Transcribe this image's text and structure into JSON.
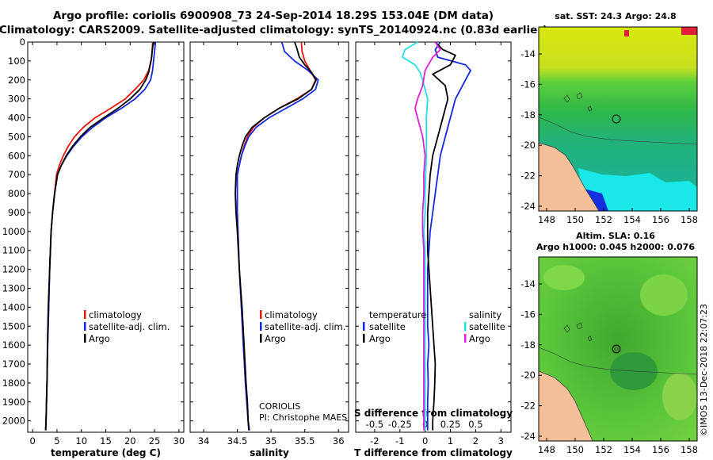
{
  "title_line1": "Argo profile: coriolis 6900908_73 24-Sep-2014 18.29S 153.04E (DM data)",
  "title_line2": "Climatology: CARS2009. Satellite-adjusted climatology: synTS_20140924.nc (0.83d earlier)",
  "colors": {
    "climatology": "#e8180a",
    "satellite": "#1428e0",
    "argo": "#000000",
    "s_satellite": "#20e0e8",
    "s_argo": "#e020d8"
  },
  "chart_data": [
    {
      "type": "line",
      "id": "temperature",
      "xlabel": "temperature (deg C)",
      "xlim": [
        -1,
        31
      ],
      "xticks": [
        0,
        5,
        10,
        15,
        20,
        25,
        30
      ],
      "ylim": [
        2060,
        0
      ],
      "yticks": [
        0,
        100,
        200,
        300,
        400,
        500,
        600,
        700,
        800,
        900,
        1000,
        1100,
        1200,
        1300,
        1400,
        1500,
        1600,
        1700,
        1800,
        1900,
        2000
      ],
      "ytick_labels": [
        "0",
        "100",
        "200",
        "300",
        "400",
        "500",
        "600",
        "700",
        "800",
        "900",
        "1000",
        "1100",
        "1200",
        "1300",
        "1400",
        "1500",
        "1600",
        "1700",
        "1800",
        "1900",
        "2000"
      ],
      "legend": [
        "climatology",
        "satellite-adj. clim.",
        "Argo"
      ],
      "series": [
        {
          "name": "climatology",
          "color_key": "climatology",
          "x": [
            24.6,
            24.5,
            24.3,
            23.8,
            22.8,
            21.0,
            19.0,
            16.0,
            12.8,
            10.4,
            8.6,
            7.3,
            6.3,
            5.5,
            4.9,
            4.5,
            4.1,
            3.8,
            3.5,
            3.3,
            3.1,
            2.95,
            2.85,
            2.75,
            2.65
          ],
          "y": [
            0,
            50,
            100,
            150,
            200,
            250,
            300,
            350,
            400,
            450,
            500,
            550,
            600,
            650,
            700,
            800,
            900,
            1000,
            1200,
            1400,
            1600,
            1800,
            1900,
            2000,
            2050
          ]
        },
        {
          "name": "satellite-adj. clim.",
          "color_key": "satellite",
          "x": [
            25.2,
            25.0,
            24.8,
            24.6,
            24.2,
            23.0,
            21.0,
            18.2,
            15.0,
            12.3,
            10.1,
            8.4,
            7.0,
            5.9,
            5.1,
            4.5,
            4.1,
            3.8,
            3.5,
            3.3,
            3.1,
            2.95,
            2.85,
            2.75,
            2.65
          ],
          "y": [
            0,
            50,
            100,
            150,
            200,
            250,
            300,
            350,
            400,
            450,
            500,
            550,
            600,
            650,
            700,
            800,
            900,
            1000,
            1200,
            1400,
            1600,
            1800,
            1900,
            2000,
            2050
          ]
        },
        {
          "name": "Argo",
          "color_key": "argo",
          "x": [
            24.8,
            24.6,
            24.4,
            24.1,
            23.8,
            23.2,
            22.0,
            20.0,
            17.5,
            14.6,
            11.8,
            9.8,
            8.2,
            6.9,
            5.9,
            5.1,
            4.5,
            4.1,
            3.8,
            3.5,
            3.2,
            3.05,
            2.95,
            2.85,
            2.75,
            2.7
          ],
          "y": [
            0,
            30,
            80,
            120,
            160,
            200,
            250,
            300,
            350,
            400,
            450,
            500,
            550,
            600,
            650,
            700,
            800,
            900,
            1000,
            1200,
            1400,
            1600,
            1800,
            1900,
            2000,
            2050
          ]
        }
      ]
    },
    {
      "type": "line",
      "id": "salinity",
      "xlabel": "salinity",
      "xlim": [
        33.8,
        36.15
      ],
      "xticks": [
        34,
        34.5,
        35,
        35.5,
        36
      ],
      "xtick_labels": [
        "34",
        "34.5",
        "35",
        "35.5",
        "36"
      ],
      "ylim": [
        2060,
        0
      ],
      "legend": [
        "climatology",
        "satellite-adj. clim.",
        "Argo"
      ],
      "note_line1": "CORIOLIS",
      "note_line2": "PI: Christophe MAES",
      "series": [
        {
          "name": "climatology",
          "color_key": "climatology",
          "x": [
            35.45,
            35.46,
            35.5,
            35.58,
            35.66,
            35.6,
            35.38,
            35.12,
            34.9,
            34.74,
            34.65,
            34.6,
            34.56,
            34.53,
            34.5,
            34.5,
            34.5,
            34.51,
            34.53,
            34.56,
            34.59,
            34.62,
            34.64,
            34.66,
            34.68
          ],
          "y": [
            0,
            50,
            100,
            150,
            200,
            250,
            300,
            350,
            400,
            450,
            500,
            550,
            600,
            650,
            700,
            800,
            900,
            1000,
            1200,
            1400,
            1600,
            1800,
            1900,
            2000,
            2050
          ]
        },
        {
          "name": "satellite-adj. clim.",
          "color_key": "satellite",
          "x": [
            35.16,
            35.2,
            35.35,
            35.55,
            35.7,
            35.66,
            35.47,
            35.22,
            34.97,
            34.78,
            34.67,
            34.61,
            34.56,
            34.53,
            34.5,
            34.5,
            34.5,
            34.51,
            34.53,
            34.56,
            34.59,
            34.62,
            34.64,
            34.66,
            34.68
          ],
          "y": [
            0,
            50,
            100,
            150,
            200,
            250,
            300,
            350,
            400,
            450,
            500,
            550,
            600,
            650,
            700,
            800,
            900,
            1000,
            1200,
            1400,
            1600,
            1800,
            1900,
            2000,
            2050
          ]
        },
        {
          "name": "Argo",
          "color_key": "argo",
          "x": [
            35.35,
            35.38,
            35.42,
            35.5,
            35.6,
            35.67,
            35.6,
            35.4,
            35.12,
            34.9,
            34.72,
            34.62,
            34.57,
            34.53,
            34.5,
            34.48,
            34.47,
            34.48,
            34.5,
            34.53,
            34.57,
            34.6,
            34.63,
            34.65,
            34.66,
            34.67
          ],
          "y": [
            0,
            30,
            80,
            120,
            160,
            200,
            250,
            300,
            350,
            400,
            450,
            500,
            550,
            600,
            650,
            700,
            800,
            900,
            1000,
            1200,
            1400,
            1600,
            1800,
            1900,
            2000,
            2050
          ]
        }
      ]
    },
    {
      "type": "line",
      "id": "difference",
      "xlabel": "T difference from climatology",
      "xlim": [
        -2.75,
        3.4
      ],
      "xticks": [
        -2,
        -1,
        0,
        1,
        2,
        3
      ],
      "xtick_labels": [
        "-2",
        "-1",
        "0",
        "1",
        "2",
        "3"
      ],
      "s_xlabel": "S difference from climatology",
      "s_xticks": [
        -2,
        -1,
        0,
        1,
        2
      ],
      "s_xtick_labels": [
        "-0.5",
        "-0.25",
        "0",
        "0.25",
        "0.5"
      ],
      "ylim": [
        2060,
        0
      ],
      "legend_temperature_title": "temperature",
      "legend_salinity_title": "salinity",
      "legend_temperature": [
        "satellite",
        "Argo"
      ],
      "legend_salinity": [
        "satellite",
        "Argo"
      ],
      "series": [
        {
          "name": "T satellite",
          "color_key": "satellite",
          "x": [
            0.6,
            0.4,
            0.5,
            1.6,
            1.8,
            1.6,
            1.2,
            1.0,
            0.8,
            0.6,
            0.5,
            0.4,
            0.3,
            0.2,
            0.15,
            0.1,
            0.1,
            0.1,
            0.1,
            0.15,
            0.1,
            0.12,
            0.1,
            0.1,
            0.1
          ],
          "y": [
            0,
            40,
            80,
            120,
            150,
            200,
            300,
            400,
            500,
            600,
            700,
            800,
            900,
            1000,
            1100,
            1200,
            1300,
            1400,
            1500,
            1600,
            1700,
            1800,
            1900,
            2000,
            2050
          ]
        },
        {
          "name": "T Argo",
          "color_key": "argo",
          "x": [
            0.4,
            0.7,
            1.2,
            1.0,
            0.3,
            0.8,
            0.9,
            0.7,
            0.5,
            0.3,
            0.2,
            0.15,
            0.1,
            0.1,
            0.1,
            0.15,
            0.2,
            0.25,
            0.3,
            0.35,
            0.4,
            0.38,
            0.35,
            0.3,
            0.3
          ],
          "y": [
            0,
            40,
            70,
            120,
            170,
            230,
            300,
            400,
            500,
            600,
            700,
            800,
            900,
            1000,
            1100,
            1200,
            1300,
            1400,
            1500,
            1600,
            1700,
            1800,
            1900,
            2000,
            2050
          ]
        },
        {
          "name": "S satellite",
          "color_key": "s_satellite",
          "x": [
            -0.3,
            -0.8,
            -0.9,
            -0.4,
            -0.2,
            -0.1,
            0,
            0.1,
            0.05,
            0.05,
            0.05,
            0.02,
            0.0,
            0.0,
            -0.05,
            0,
            0,
            0,
            0,
            0,
            0,
            0,
            0,
            0,
            0
          ],
          "y": [
            0,
            40,
            80,
            120,
            160,
            200,
            250,
            300,
            400,
            500,
            600,
            700,
            800,
            900,
            1000,
            1100,
            1200,
            1300,
            1400,
            1500,
            1600,
            1700,
            1800,
            1900,
            2050
          ]
        },
        {
          "name": "S Argo",
          "color_key": "s_argo",
          "x": [
            0.4,
            0.6,
            0.3,
            0.0,
            -0.1,
            -0.3,
            -0.4,
            -0.3,
            -0.1,
            0,
            -0.05,
            -0.05,
            -0.1,
            -0.1,
            -0.05,
            -0.05,
            -0.05,
            -0.05,
            -0.05,
            -0.05,
            -0.05,
            -0.05,
            -0.05
          ],
          "y": [
            0,
            40,
            80,
            150,
            230,
            300,
            350,
            400,
            500,
            600,
            700,
            800,
            900,
            1000,
            1100,
            1200,
            1300,
            1400,
            1500,
            1600,
            1700,
            1800,
            2050
          ]
        }
      ]
    }
  ],
  "map_sst": {
    "title": "sat. SST: 24.3 Argo: 24.8",
    "xticks": [
      "148",
      "150",
      "152",
      "154",
      "156",
      "158"
    ],
    "yticks": [
      "-14",
      "-16",
      "-18",
      "-20",
      "-22",
      "-24"
    ]
  },
  "map_sla": {
    "title_line1": "Altim. SLA: 0.16",
    "title_line2": "Argo h1000: 0.045 h2000: 0.076",
    "xticks": [
      "148",
      "150",
      "152",
      "154",
      "156",
      "158"
    ],
    "yticks": [
      "-14",
      "-16",
      "-18",
      "-20",
      "-22",
      "-24"
    ]
  },
  "credit": "©IMOS 13-Dec-2018 22:07:23"
}
